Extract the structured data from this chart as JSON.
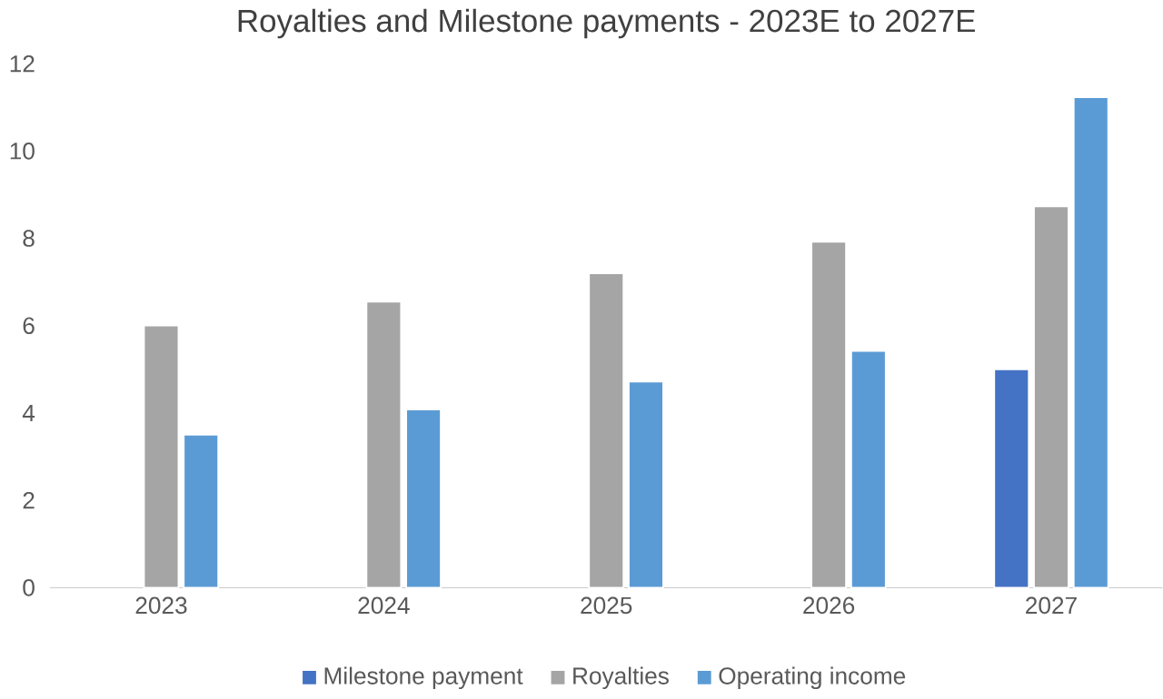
{
  "chart_data": {
    "type": "bar",
    "title": "Royalties and Milestone payments - 2023E to 2027E",
    "categories": [
      "2023",
      "2024",
      "2025",
      "2026",
      "2027"
    ],
    "series": [
      {
        "name": "Milestone payment",
        "color": "#4472c4",
        "values": [
          null,
          null,
          null,
          null,
          5.0
        ]
      },
      {
        "name": "Royalties",
        "color": "#a5a5a5",
        "values": [
          6.0,
          6.55,
          7.2,
          7.92,
          8.73
        ]
      },
      {
        "name": "Operating income",
        "color": "#5b9bd5",
        "values": [
          3.5,
          4.08,
          4.72,
          5.42,
          11.23
        ]
      }
    ],
    "ylim": [
      0,
      12
    ],
    "yticks": [
      0,
      2,
      4,
      6,
      8,
      10,
      12
    ],
    "legend": "bottom"
  }
}
